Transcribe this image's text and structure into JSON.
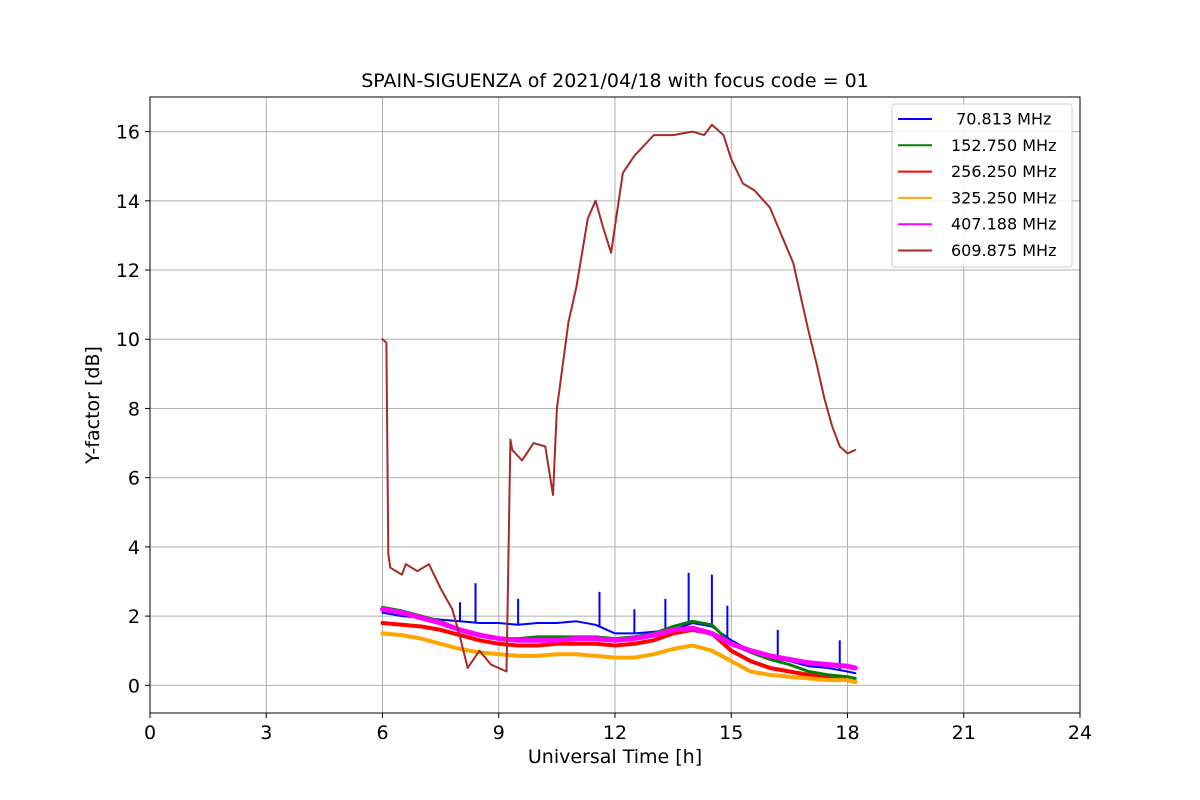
{
  "chart_data": {
    "type": "line",
    "title": "SPAIN-SIGUENZA of 2021/04/18 with focus code = 01",
    "xlabel": "Universal Time [h]",
    "ylabel": "Y-factor [dB]",
    "xlim": [
      0,
      24
    ],
    "ylim": [
      -0.8,
      17
    ],
    "xticks": [
      0,
      3,
      6,
      9,
      12,
      15,
      18,
      21,
      24
    ],
    "yticks": [
      0,
      2,
      4,
      6,
      8,
      10,
      12,
      14,
      16
    ],
    "grid": true,
    "legend_position": "top-right",
    "series": [
      {
        "name": " 70.813 MHz",
        "color": "#0000ff",
        "x": [
          6.0,
          6.5,
          7.0,
          7.5,
          8.0,
          8.5,
          9.0,
          9.5,
          10.0,
          10.5,
          11.0,
          11.5,
          12.0,
          12.5,
          13.0,
          13.5,
          14.0,
          14.5,
          15.0,
          15.5,
          16.0,
          16.5,
          17.0,
          17.5,
          18.0,
          18.2
        ],
        "y": [
          2.1,
          2.0,
          1.95,
          1.9,
          1.85,
          1.8,
          1.8,
          1.75,
          1.8,
          1.8,
          1.85,
          1.75,
          1.5,
          1.5,
          1.55,
          1.6,
          1.8,
          1.7,
          1.3,
          1.0,
          0.8,
          0.7,
          0.55,
          0.5,
          0.4,
          0.35
        ],
        "spikes": [
          [
            8.0,
            2.4
          ],
          [
            8.4,
            2.95
          ],
          [
            9.5,
            2.5
          ],
          [
            11.6,
            2.7
          ],
          [
            12.5,
            2.2
          ],
          [
            13.3,
            2.5
          ],
          [
            13.9,
            3.25
          ],
          [
            14.5,
            3.2
          ],
          [
            14.9,
            2.3
          ],
          [
            16.2,
            1.6
          ],
          [
            17.8,
            1.3
          ]
        ]
      },
      {
        "name": "152.750 MHz",
        "color": "#008000",
        "x": [
          6.0,
          6.5,
          7.0,
          7.5,
          8.0,
          8.5,
          9.0,
          9.5,
          10.0,
          10.5,
          11.0,
          11.5,
          12.0,
          12.5,
          13.0,
          13.5,
          14.0,
          14.5,
          15.0,
          15.5,
          16.0,
          16.5,
          17.0,
          17.5,
          18.0,
          18.2
        ],
        "y": [
          2.25,
          2.15,
          2.0,
          1.85,
          1.6,
          1.45,
          1.35,
          1.35,
          1.4,
          1.4,
          1.4,
          1.4,
          1.35,
          1.4,
          1.5,
          1.7,
          1.85,
          1.75,
          1.2,
          0.95,
          0.75,
          0.6,
          0.4,
          0.3,
          0.25,
          0.2
        ]
      },
      {
        "name": "256.250 MHz",
        "color": "#ff0000",
        "x": [
          6.0,
          6.5,
          7.0,
          7.5,
          8.0,
          8.5,
          9.0,
          9.5,
          10.0,
          10.5,
          11.0,
          11.5,
          12.0,
          12.5,
          13.0,
          13.5,
          14.0,
          14.5,
          15.0,
          15.5,
          16.0,
          16.5,
          17.0,
          17.5,
          18.0,
          18.2
        ],
        "y": [
          1.8,
          1.75,
          1.7,
          1.6,
          1.45,
          1.3,
          1.2,
          1.15,
          1.15,
          1.2,
          1.2,
          1.2,
          1.15,
          1.2,
          1.3,
          1.5,
          1.6,
          1.5,
          1.0,
          0.7,
          0.5,
          0.4,
          0.3,
          0.2,
          0.15,
          0.1
        ]
      },
      {
        "name": "325.250 MHz",
        "color": "#ffa500",
        "x": [
          6.0,
          6.5,
          7.0,
          7.5,
          8.0,
          8.5,
          9.0,
          9.5,
          10.0,
          10.5,
          11.0,
          11.5,
          12.0,
          12.5,
          13.0,
          13.5,
          14.0,
          14.5,
          15.0,
          15.5,
          16.0,
          16.5,
          17.0,
          17.5,
          18.0,
          18.2
        ],
        "y": [
          1.5,
          1.45,
          1.35,
          1.2,
          1.05,
          0.95,
          0.9,
          0.85,
          0.85,
          0.9,
          0.9,
          0.85,
          0.8,
          0.8,
          0.9,
          1.05,
          1.15,
          1.0,
          0.7,
          0.4,
          0.3,
          0.25,
          0.2,
          0.15,
          0.15,
          0.1
        ]
      },
      {
        "name": "407.188 MHz",
        "color": "#ff00ff",
        "x": [
          6.0,
          6.5,
          7.0,
          7.5,
          8.0,
          8.5,
          9.0,
          9.5,
          10.0,
          10.5,
          11.0,
          11.5,
          12.0,
          12.5,
          13.0,
          13.5,
          14.0,
          14.5,
          15.0,
          15.5,
          16.0,
          16.5,
          17.0,
          17.5,
          18.0,
          18.2
        ],
        "y": [
          2.2,
          2.1,
          1.95,
          1.8,
          1.6,
          1.45,
          1.35,
          1.3,
          1.3,
          1.3,
          1.35,
          1.35,
          1.3,
          1.35,
          1.45,
          1.6,
          1.65,
          1.5,
          1.2,
          1.0,
          0.85,
          0.75,
          0.65,
          0.6,
          0.55,
          0.5
        ]
      },
      {
        "name": "609.875 MHz",
        "color": "#a52a2a",
        "x": [
          6.0,
          6.1,
          6.15,
          6.2,
          6.5,
          6.6,
          6.9,
          7.2,
          7.5,
          7.8,
          8.0,
          8.2,
          8.5,
          8.8,
          9.2,
          9.3,
          9.35,
          9.6,
          9.9,
          10.2,
          10.4,
          10.5,
          10.8,
          11.0,
          11.3,
          11.5,
          11.7,
          11.9,
          12.2,
          12.5,
          13.0,
          13.5,
          14.0,
          14.3,
          14.5,
          14.8,
          15.0,
          15.3,
          15.6,
          16.0,
          16.3,
          16.6,
          16.8,
          17.0,
          17.2,
          17.4,
          17.6,
          17.8,
          18.0,
          18.2
        ],
        "y": [
          10.0,
          9.9,
          3.8,
          3.4,
          3.2,
          3.5,
          3.3,
          3.5,
          2.8,
          2.2,
          1.4,
          0.5,
          1.0,
          0.6,
          0.4,
          7.1,
          6.8,
          6.5,
          7.0,
          6.9,
          5.5,
          8.0,
          10.5,
          11.5,
          13.5,
          14.0,
          13.2,
          12.5,
          14.8,
          15.3,
          15.9,
          15.9,
          16.0,
          15.9,
          16.2,
          15.9,
          15.2,
          14.5,
          14.3,
          13.8,
          13.0,
          12.2,
          11.2,
          10.2,
          9.3,
          8.3,
          7.5,
          6.9,
          6.7,
          6.8
        ]
      }
    ]
  }
}
